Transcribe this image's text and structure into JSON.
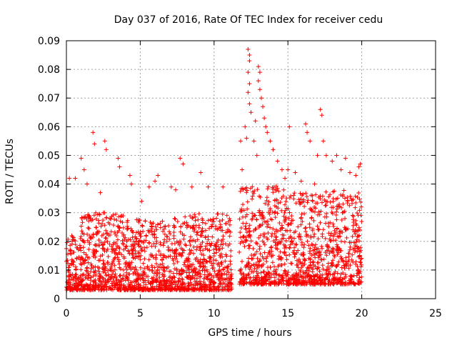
{
  "chart_data": {
    "type": "scatter",
    "title": "Day 037 of 2016, Rate Of TEC Index for receiver cedu",
    "xlabel": "GPS time / hours",
    "ylabel": "ROTI / TECUs",
    "xlim": [
      0,
      25
    ],
    "ylim": [
      0,
      0.09
    ],
    "xticks": [
      "0",
      "5",
      "10",
      "15",
      "20",
      "25"
    ],
    "yticks": [
      "0",
      "0.01",
      "0.02",
      "0.03",
      "0.04",
      "0.05",
      "0.06",
      "0.07",
      "0.08",
      "0.09"
    ],
    "grid": true,
    "legend": "none",
    "marker": "plus",
    "color": "#ff0000",
    "series": [
      {
        "points": [
          [
            0.2,
            0.042
          ],
          [
            0.6,
            0.042
          ],
          [
            1.0,
            0.049
          ],
          [
            1.2,
            0.045
          ],
          [
            1.4,
            0.04
          ],
          [
            1.8,
            0.058
          ],
          [
            1.9,
            0.054
          ],
          [
            2.3,
            0.037
          ],
          [
            2.6,
            0.055
          ],
          [
            2.7,
            0.052
          ],
          [
            3.5,
            0.049
          ],
          [
            3.6,
            0.046
          ],
          [
            4.3,
            0.043
          ],
          [
            4.4,
            0.04
          ],
          [
            5.1,
            0.034
          ],
          [
            5.6,
            0.039
          ],
          [
            6.0,
            0.041
          ],
          [
            6.2,
            0.043
          ],
          [
            7.1,
            0.039
          ],
          [
            7.4,
            0.038
          ],
          [
            7.7,
            0.049
          ],
          [
            7.9,
            0.047
          ],
          [
            8.5,
            0.039
          ],
          [
            9.1,
            0.044
          ],
          [
            9.6,
            0.039
          ],
          [
            10.6,
            0.039
          ],
          [
            11.8,
            0.055
          ],
          [
            11.9,
            0.045
          ],
          [
            12.1,
            0.06
          ],
          [
            12.2,
            0.056
          ],
          [
            12.3,
            0.087
          ],
          [
            12.4,
            0.085
          ],
          [
            12.4,
            0.083
          ],
          [
            12.3,
            0.079
          ],
          [
            12.4,
            0.075
          ],
          [
            12.3,
            0.072
          ],
          [
            12.4,
            0.068
          ],
          [
            12.5,
            0.065
          ],
          [
            12.7,
            0.055
          ],
          [
            12.8,
            0.062
          ],
          [
            12.9,
            0.05
          ],
          [
            13.0,
            0.081
          ],
          [
            13.1,
            0.079
          ],
          [
            13.0,
            0.076
          ],
          [
            13.1,
            0.073
          ],
          [
            13.2,
            0.07
          ],
          [
            13.3,
            0.067
          ],
          [
            13.4,
            0.063
          ],
          [
            13.5,
            0.06
          ],
          [
            13.6,
            0.058
          ],
          [
            13.8,
            0.055
          ],
          [
            14.0,
            0.052
          ],
          [
            14.3,
            0.048
          ],
          [
            14.6,
            0.045
          ],
          [
            14.8,
            0.042
          ],
          [
            15.0,
            0.045
          ],
          [
            15.1,
            0.06
          ],
          [
            15.5,
            0.044
          ],
          [
            15.9,
            0.041
          ],
          [
            16.2,
            0.061
          ],
          [
            16.3,
            0.058
          ],
          [
            16.5,
            0.055
          ],
          [
            16.8,
            0.04
          ],
          [
            17.0,
            0.05
          ],
          [
            17.2,
            0.066
          ],
          [
            17.3,
            0.064
          ],
          [
            17.4,
            0.055
          ],
          [
            17.6,
            0.05
          ],
          [
            18.0,
            0.048
          ],
          [
            18.3,
            0.05
          ],
          [
            18.6,
            0.045
          ],
          [
            18.9,
            0.049
          ],
          [
            19.2,
            0.044
          ],
          [
            19.6,
            0.043
          ],
          [
            19.8,
            0.046
          ],
          [
            19.9,
            0.047
          ]
        ]
      }
    ],
    "density_envelope": [
      {
        "x_range": [
          0.0,
          1.0
        ],
        "y_min": 0.003,
        "y_max": 0.022
      },
      {
        "x_range": [
          1.0,
          4.0
        ],
        "y_min": 0.003,
        "y_max": 0.03
      },
      {
        "x_range": [
          4.0,
          8.0
        ],
        "y_min": 0.003,
        "y_max": 0.028
      },
      {
        "x_range": [
          8.0,
          11.2
        ],
        "y_min": 0.003,
        "y_max": 0.03
      },
      {
        "x_range": [
          11.7,
          15.0
        ],
        "y_min": 0.005,
        "y_max": 0.04
      },
      {
        "x_range": [
          15.0,
          20.0
        ],
        "y_min": 0.005,
        "y_max": 0.038
      }
    ]
  }
}
